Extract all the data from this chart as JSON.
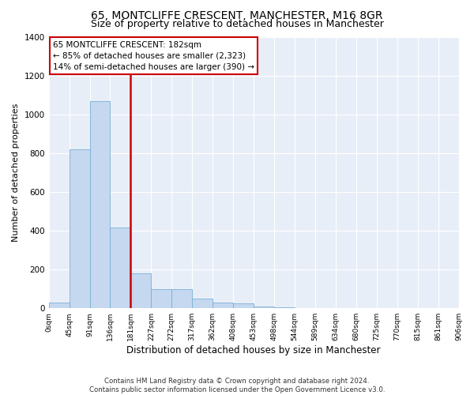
{
  "title1": "65, MONTCLIFFE CRESCENT, MANCHESTER, M16 8GR",
  "title2": "Size of property relative to detached houses in Manchester",
  "xlabel": "Distribution of detached houses by size in Manchester",
  "ylabel": "Number of detached properties",
  "bar_values": [
    30,
    820,
    1070,
    415,
    182,
    100,
    100,
    50,
    30,
    25,
    10,
    5,
    2,
    0,
    0,
    0,
    0,
    0,
    0,
    0
  ],
  "bin_labels": [
    "0sqm",
    "45sqm",
    "91sqm",
    "136sqm",
    "181sqm",
    "227sqm",
    "272sqm",
    "317sqm",
    "362sqm",
    "408sqm",
    "453sqm",
    "498sqm",
    "544sqm",
    "589sqm",
    "634sqm",
    "680sqm",
    "725sqm",
    "770sqm",
    "815sqm",
    "861sqm",
    "906sqm"
  ],
  "bar_color": "#c5d8f0",
  "bar_edge_color": "#7aafd4",
  "vline_index": 4,
  "vline_color": "#cc0000",
  "annotation_text": "65 MONTCLIFFE CRESCENT: 182sqm\n← 85% of detached houses are smaller (2,323)\n14% of semi-detached houses are larger (390) →",
  "annotation_box_color": "#ffffff",
  "annotation_box_edge_color": "#cc0000",
  "ylim": [
    0,
    1400
  ],
  "yticks": [
    0,
    200,
    400,
    600,
    800,
    1000,
    1200,
    1400
  ],
  "footnote": "Contains HM Land Registry data © Crown copyright and database right 2024.\nContains public sector information licensed under the Open Government Licence v3.0.",
  "background_color": "#e8eef8",
  "fig_background": "#ffffff",
  "title1_fontsize": 10,
  "title2_fontsize": 9,
  "ylabel_fontsize": 8,
  "xlabel_fontsize": 8.5
}
